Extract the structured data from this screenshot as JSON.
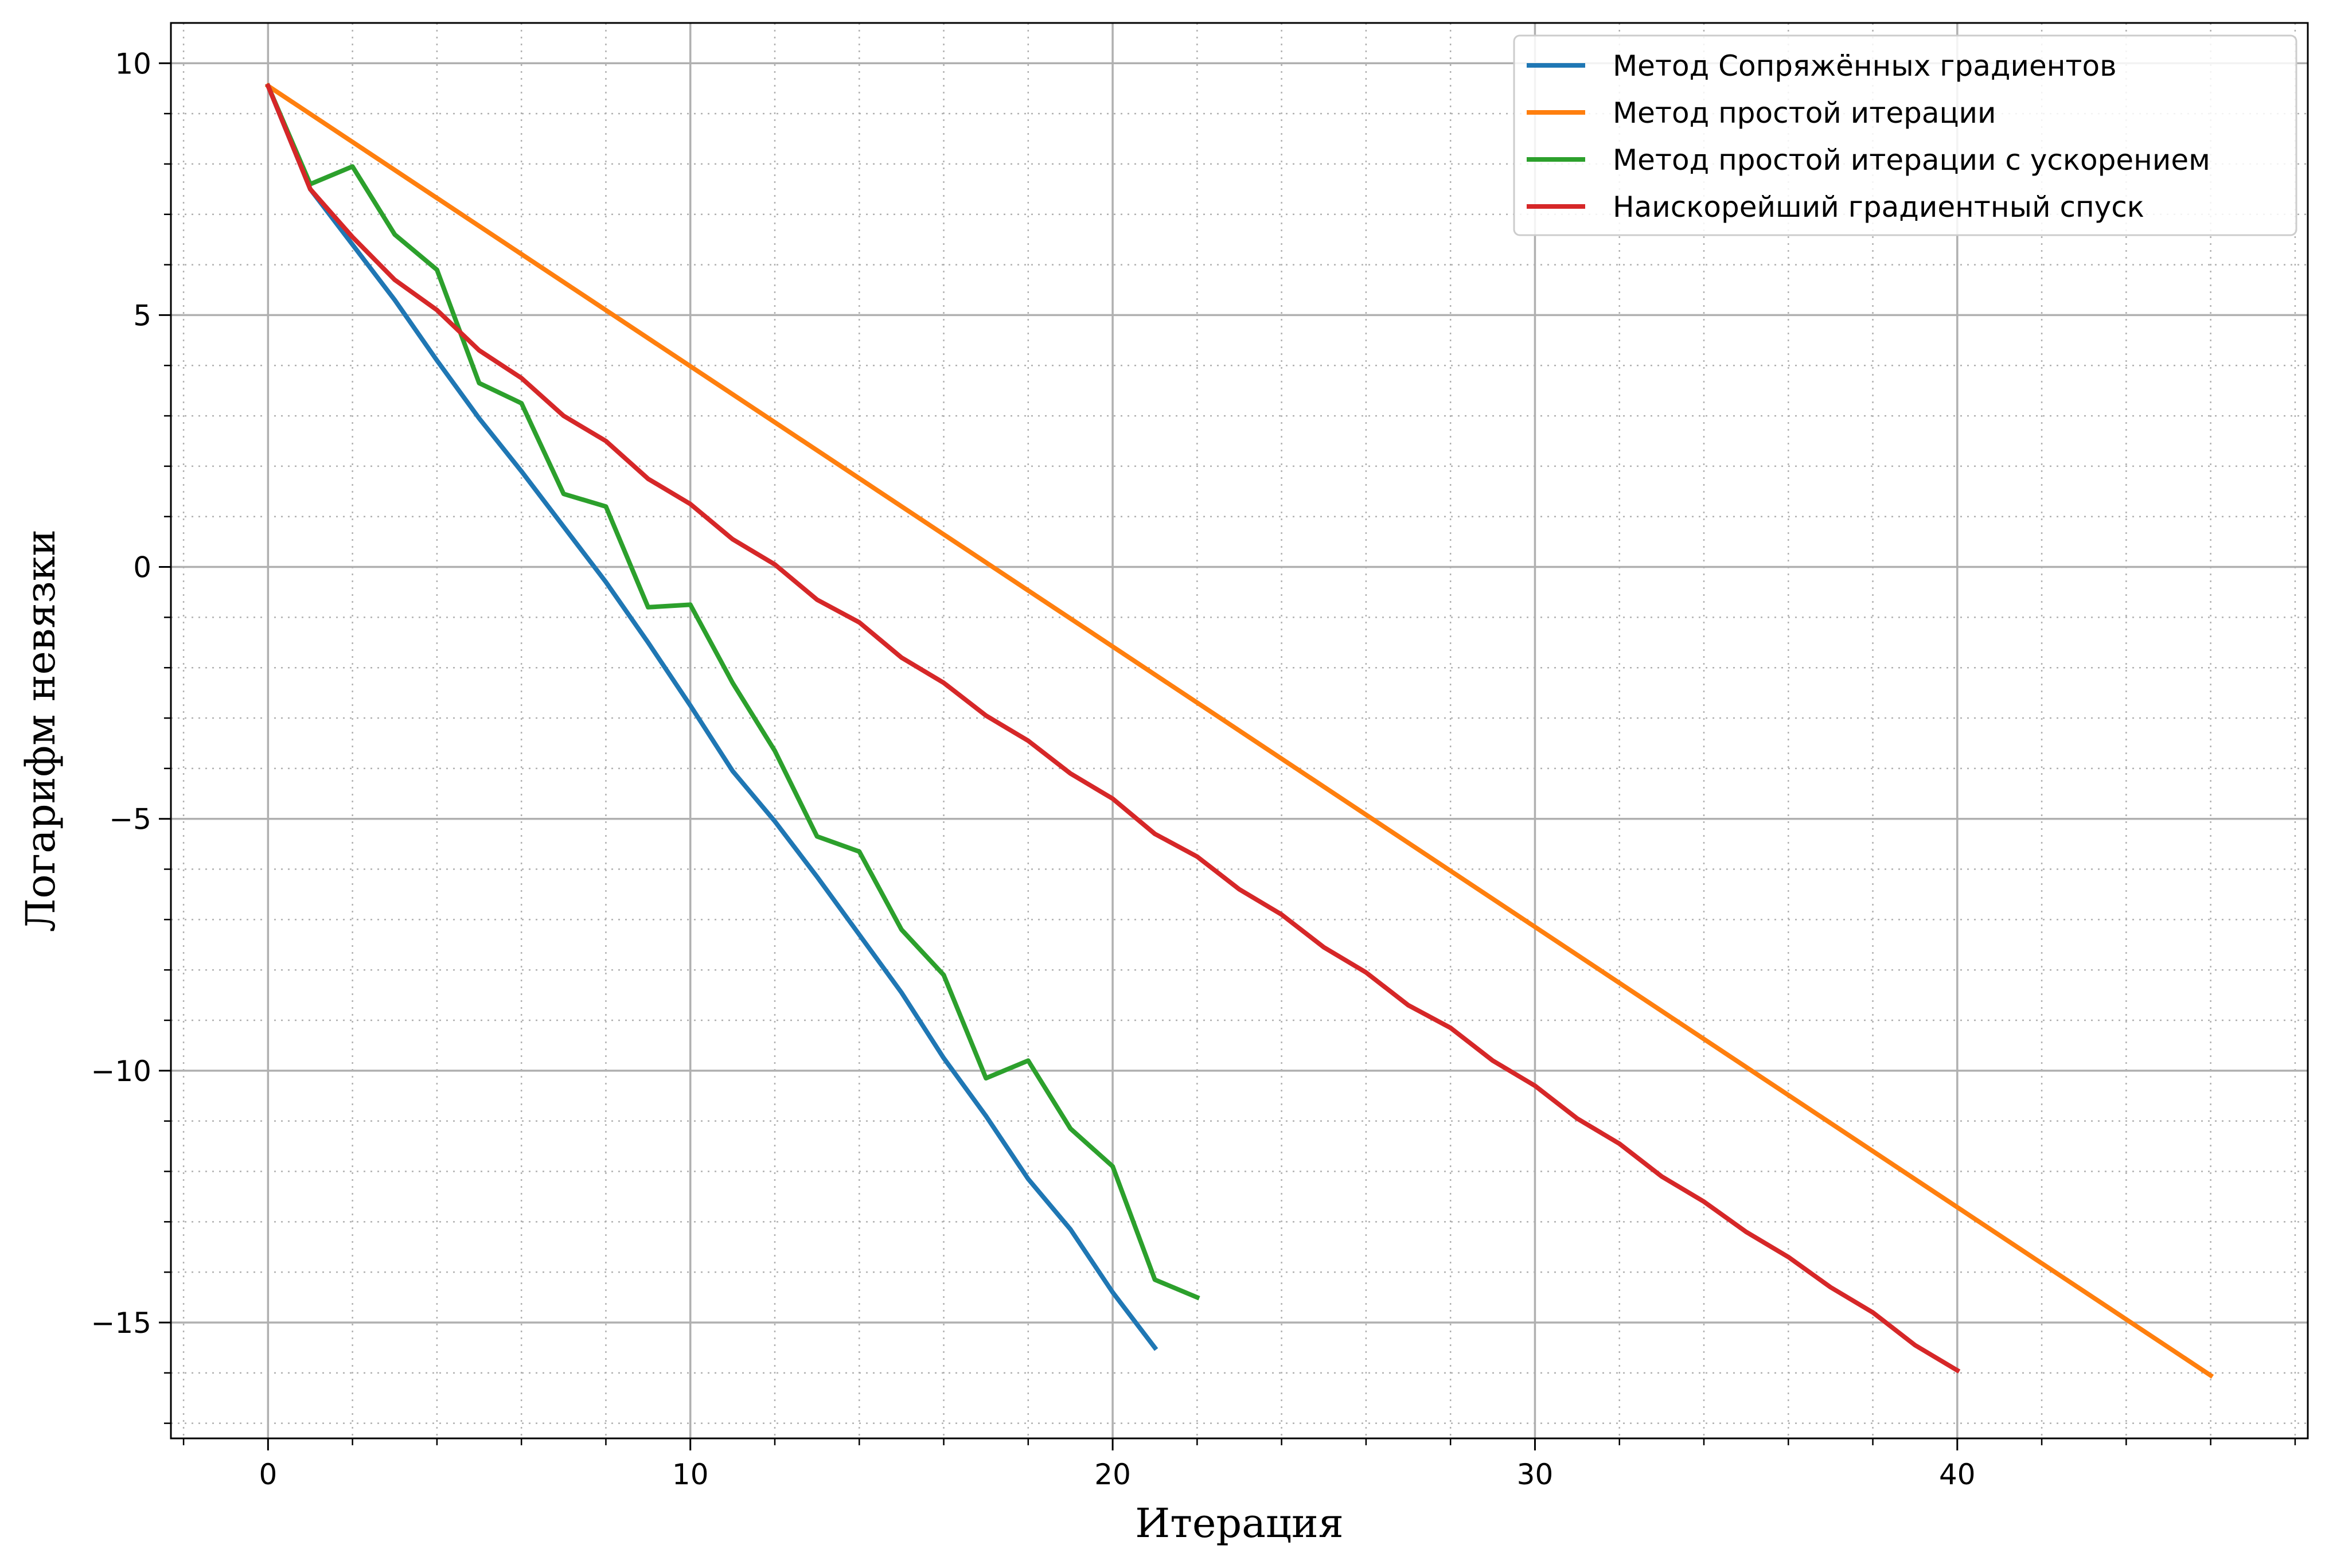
{
  "chart_data": {
    "type": "line",
    "xlabel": "Итерация",
    "ylabel": "Логарифм невязки",
    "xlim": [
      -2.3,
      48.3
    ],
    "ylim": [
      -17.3,
      10.8
    ],
    "xticks": [
      0,
      10,
      20,
      30,
      40
    ],
    "yticks": [
      10,
      5,
      0,
      -5,
      -10,
      -15
    ],
    "xtick_labels": [
      "0",
      "10",
      "20",
      "30",
      "40"
    ],
    "ytick_labels": [
      "10",
      "5",
      "0",
      "−5",
      "−10",
      "−15"
    ],
    "grid": {
      "major": true,
      "minor": true,
      "minor_x_step": 2,
      "minor_y_step": 1
    },
    "legend_position": "top-right",
    "series": [
      {
        "name": "Метод Сопряжённых градиентов",
        "color": "#1f77b4",
        "x": [
          0,
          1,
          2,
          3,
          4,
          5,
          6,
          7,
          8,
          9,
          10,
          11,
          12,
          13,
          14,
          15,
          16,
          17,
          18,
          19,
          20,
          21
        ],
        "y": [
          9.55,
          7.5,
          6.4,
          5.3,
          4.1,
          2.95,
          1.9,
          0.8,
          -0.3,
          -1.5,
          -2.75,
          -4.05,
          -5.05,
          -6.15,
          -7.3,
          -8.45,
          -9.75,
          -10.9,
          -12.15,
          -13.15,
          -14.4,
          -15.5
        ]
      },
      {
        "name": "Метод простой итерации",
        "color": "#ff7f0e",
        "x": [
          0,
          46
        ],
        "y": [
          9.55,
          -16.05
        ]
      },
      {
        "name": "Метод простой итерации с ускорением",
        "color": "#2ca02c",
        "x": [
          0,
          1,
          2,
          3,
          4,
          5,
          6,
          7,
          8,
          9,
          10,
          11,
          12,
          13,
          14,
          15,
          16,
          17,
          18,
          19,
          20,
          21,
          22
        ],
        "y": [
          9.55,
          7.6,
          7.95,
          6.6,
          5.9,
          3.65,
          3.25,
          1.45,
          1.2,
          -0.8,
          -0.75,
          -2.3,
          -3.65,
          -5.35,
          -5.65,
          -7.2,
          -8.1,
          -10.15,
          -9.8,
          -11.15,
          -11.9,
          -14.15,
          -14.5
        ]
      },
      {
        "name": "Наискорейший градиентный спуск",
        "color": "#d62728",
        "x": [
          0,
          1,
          2,
          3,
          4,
          5,
          6,
          7,
          8,
          9,
          10,
          11,
          12,
          13,
          14,
          15,
          16,
          17,
          18,
          19,
          20,
          21,
          22,
          23,
          24,
          25,
          26,
          27,
          28,
          29,
          30,
          31,
          32,
          33,
          34,
          35,
          36,
          37,
          38,
          39,
          40
        ],
        "y": [
          9.55,
          7.5,
          6.55,
          5.7,
          5.1,
          4.3,
          3.75,
          3.0,
          2.5,
          1.75,
          1.25,
          0.55,
          0.05,
          -0.65,
          -1.1,
          -1.8,
          -2.3,
          -2.95,
          -3.45,
          -4.1,
          -4.6,
          -5.3,
          -5.75,
          -6.4,
          -6.9,
          -7.55,
          -8.05,
          -8.7,
          -9.15,
          -9.8,
          -10.3,
          -10.95,
          -11.45,
          -12.1,
          -12.6,
          -13.2,
          -13.7,
          -14.3,
          -14.8,
          -15.45,
          -15.95
        ]
      }
    ]
  }
}
